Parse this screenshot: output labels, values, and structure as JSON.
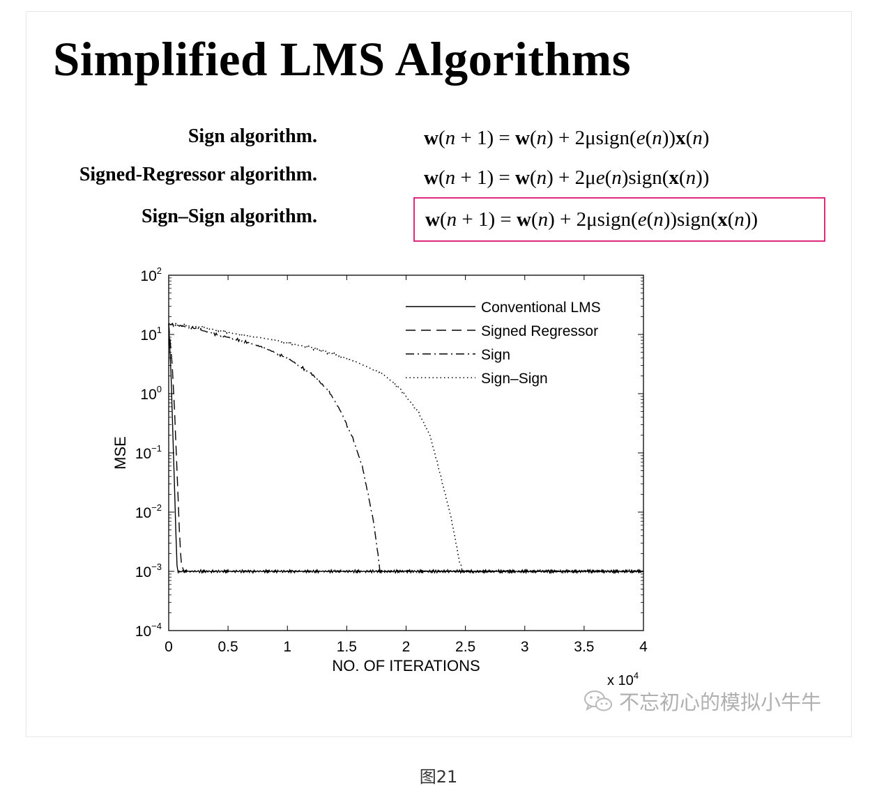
{
  "title": "Simplified LMS Algorithms",
  "algorithms": [
    {
      "name": "Sign algorithm.",
      "equation": {
        "p1": "w",
        "p2": "(",
        "p3": "n",
        "p4": " + 1) = ",
        "p5": "w",
        "p6": "(",
        "p7": "n",
        "p8": ") + 2μsign(",
        "p9": "e",
        "p10": "(",
        "p11": "n",
        "p12": "))",
        "p13": "x",
        "p14": "(",
        "p15": "n",
        "p16": ")"
      }
    },
    {
      "name": "Signed-Regressor algorithm.",
      "equation": {
        "p1": "w",
        "p2": "(",
        "p3": "n",
        "p4": " + 1) = ",
        "p5": "w",
        "p6": "(",
        "p7": "n",
        "p8": ") + 2μ",
        "p9": "e",
        "p10": "(",
        "p11": "n",
        "p12": ")sign(",
        "p13": "x",
        "p14": "(",
        "p15": "n",
        "p16": "))"
      }
    },
    {
      "name": "Sign–Sign algorithm.",
      "equation": {
        "p1": "w",
        "p2": "(",
        "p3": "n",
        "p4": " + 1) = ",
        "p5": "w",
        "p6": "(",
        "p7": "n",
        "p8": ") + 2μsign(",
        "p9": "e",
        "p10": "(",
        "p11": "n",
        "p12": "))sign(",
        "p13": "x",
        "p14": "(",
        "p15": "n",
        "p16": "))"
      }
    }
  ],
  "highlight_color": "#e0287d",
  "chart_data": {
    "type": "line",
    "ylabel": "MSE",
    "xlabel": "NO. OF ITERATIONS",
    "x_multiplier": "x 10^4",
    "xlim": [
      0,
      4
    ],
    "ylim": [
      0.0001,
      100
    ],
    "yscale": "log",
    "xticks": [
      "0",
      "0.5",
      "1",
      "1.5",
      "2",
      "2.5",
      "3",
      "3.5",
      "4"
    ],
    "yticks": [
      {
        "base": "10",
        "exp": "2"
      },
      {
        "base": "10",
        "exp": "1"
      },
      {
        "base": "10",
        "exp": "0"
      },
      {
        "base": "10",
        "exp": "−1"
      },
      {
        "base": "10",
        "exp": "−2"
      },
      {
        "base": "10",
        "exp": "−3"
      },
      {
        "base": "10",
        "exp": "−4"
      }
    ],
    "legend_position": "top-right",
    "series": [
      {
        "name": "Conventional LMS",
        "style": "solid",
        "x": [
          0,
          0.02,
          0.04,
          0.06,
          0.07,
          0.08,
          0.1,
          4
        ],
        "y": [
          15,
          2,
          0.1,
          0.005,
          0.0012,
          0.001,
          0.001,
          0.001
        ]
      },
      {
        "name": "Signed Regressor",
        "style": "dashed",
        "x": [
          0,
          0.03,
          0.05,
          0.07,
          0.09,
          0.1,
          0.11,
          0.13,
          0.15,
          4
        ],
        "y": [
          15,
          3,
          0.5,
          0.05,
          0.005,
          0.002,
          0.0012,
          0.001,
          0.001,
          0.001
        ]
      },
      {
        "name": "Sign",
        "style": "dashdot",
        "x": [
          0,
          0.2,
          0.4,
          0.6,
          0.8,
          1.0,
          1.2,
          1.35,
          1.45,
          1.55,
          1.63,
          1.68,
          1.72,
          1.75,
          1.77,
          1.78,
          4
        ],
        "y": [
          15,
          13,
          10,
          8,
          6,
          4,
          2.2,
          1.1,
          0.5,
          0.18,
          0.06,
          0.02,
          0.008,
          0.003,
          0.0015,
          0.001,
          0.001
        ]
      },
      {
        "name": "Sign–Sign",
        "style": "dotted",
        "x": [
          0,
          0.3,
          0.6,
          0.9,
          1.2,
          1.5,
          1.8,
          1.95,
          2.1,
          2.2,
          2.27,
          2.33,
          2.38,
          2.42,
          2.45,
          2.48,
          2.5,
          4
        ],
        "y": [
          15,
          13,
          10,
          8,
          6,
          4,
          2.2,
          1.2,
          0.5,
          0.2,
          0.06,
          0.02,
          0.008,
          0.003,
          0.0015,
          0.001,
          0.001,
          0.001
        ]
      }
    ]
  },
  "watermark": "不忘初心的模拟小牛牛",
  "caption": "图21"
}
